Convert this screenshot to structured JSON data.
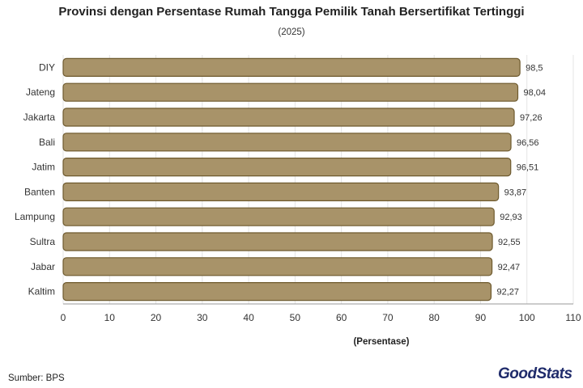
{
  "title": "Provinsi dengan Persentase Rumah Tangga Pemilik Tanah Bersertifikat Tertinggi",
  "subtitle": "(2025)",
  "source": "Sumber: BPS",
  "logo": {
    "part1": "Good",
    "part2": "Stats"
  },
  "colors": {
    "bar_fill": "#a89369",
    "bar_stroke": "#6e5a2e",
    "grid": "#e4e4e4",
    "axis": "#999999",
    "text": "#333333",
    "logo": "#1f2b6b"
  },
  "chart_data": {
    "type": "bar",
    "orientation": "horizontal",
    "categories": [
      "DIY",
      "Jateng",
      "Jakarta",
      "Bali",
      "Jatim",
      "Banten",
      "Lampung",
      "Sultra",
      "Jabar",
      "Kaltim"
    ],
    "values": [
      98.5,
      98.04,
      97.26,
      96.56,
      96.51,
      93.87,
      92.93,
      92.55,
      92.47,
      92.27
    ],
    "value_labels": [
      "98,5",
      "98,04",
      "97,26",
      "96,56",
      "96,51",
      "93,87",
      "92,93",
      "92,55",
      "92,47",
      "92,27"
    ],
    "xlabel": "(Persentase)",
    "ylabel": "",
    "xlim": [
      0,
      110
    ],
    "xticks": [
      0,
      10,
      20,
      30,
      40,
      50,
      60,
      70,
      80,
      90,
      100,
      110
    ],
    "grid": true
  }
}
